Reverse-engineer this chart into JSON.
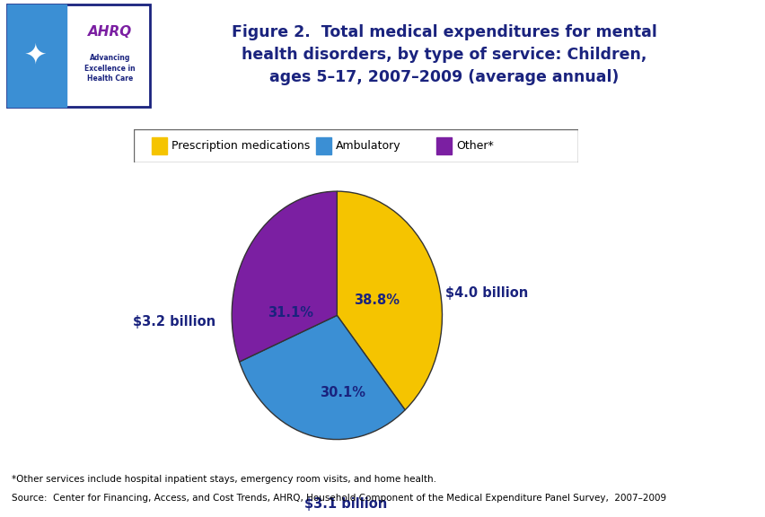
{
  "title": "Figure 2.  Total medical expenditures for mental\nhealth disorders, by type of service: Children,\nages 5–17, 2007–2009 (average annual)",
  "slices": [
    38.8,
    30.1,
    31.1
  ],
  "labels": [
    "Prescription medications",
    "Ambulatory",
    "Other*"
  ],
  "colors": [
    "#F5C400",
    "#3B8FD4",
    "#7B1FA2"
  ],
  "pct_labels": [
    "38.8%",
    "30.1%",
    "31.1%"
  ],
  "dollar_labels": [
    "$4.0 billion",
    "$3.1 billion",
    "$3.2 billion"
  ],
  "start_angle": 90,
  "legend_labels": [
    "Prescription medications",
    "Ambulatory",
    "Other*"
  ],
  "footnote1": "*Other services include hospital inpatient stays, emergency room visits, and home health.",
  "footnote2": "Source:  Center for Financing, Access, and Cost Trends, AHRQ, Household Component of the Medical Expenditure Panel Survey,  2007–2009",
  "title_color": "#1A237E",
  "dollar_text_color": "#1A237E",
  "pct_text_color": "#1A237E",
  "background_color": "#FFFFFF",
  "header_bg_color": "#FFFFFF",
  "thick_bar_color": "#000080",
  "thin_bar_color": "#1A237E",
  "logo_border_color": "#1A237E",
  "logo_bg_color": "#3B8FD4",
  "legend_border_color": "#666666"
}
